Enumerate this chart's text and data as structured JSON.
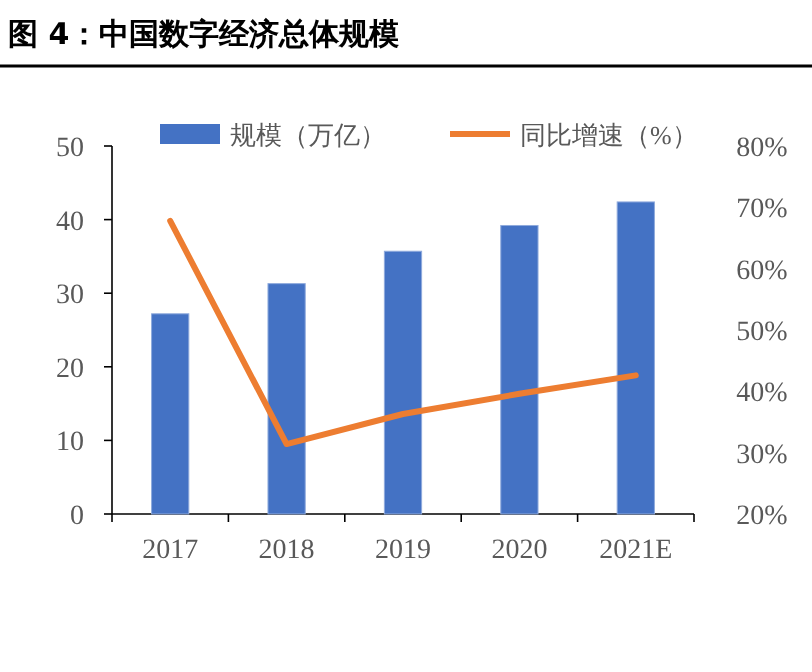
{
  "chart_data": {
    "type": "bar",
    "title": "图 4：中国数字经济总体规模",
    "categories": [
      "2017",
      "2018",
      "2019",
      "2020",
      "2021E"
    ],
    "series": [
      {
        "name": "规模（万亿）",
        "color": "#4472c4",
        "values": [
          27.2,
          31.3,
          35.7,
          39.2,
          42.4
        ]
      },
      {
        "name": "同比增速（%）",
        "type": "line",
        "axis": "y2",
        "color": "#ed7d31",
        "values": [
          67.8,
          31.4,
          36.3,
          39.6,
          42.6
        ]
      }
    ],
    "ylim": [
      0,
      50
    ],
    "yticks": [
      0,
      10,
      20,
      30,
      40,
      50
    ],
    "y2lim": [
      20,
      80
    ],
    "y2ticks": [
      {
        "value": 20,
        "label": "20%"
      },
      {
        "value": 30,
        "label": "30%"
      },
      {
        "value": 40,
        "label": "40%"
      },
      {
        "value": 50,
        "label": "50%"
      },
      {
        "value": 60,
        "label": "60%"
      },
      {
        "value": 70,
        "label": "70%"
      },
      {
        "value": 80,
        "label": "80%"
      }
    ],
    "legend": "top",
    "grid": false
  }
}
